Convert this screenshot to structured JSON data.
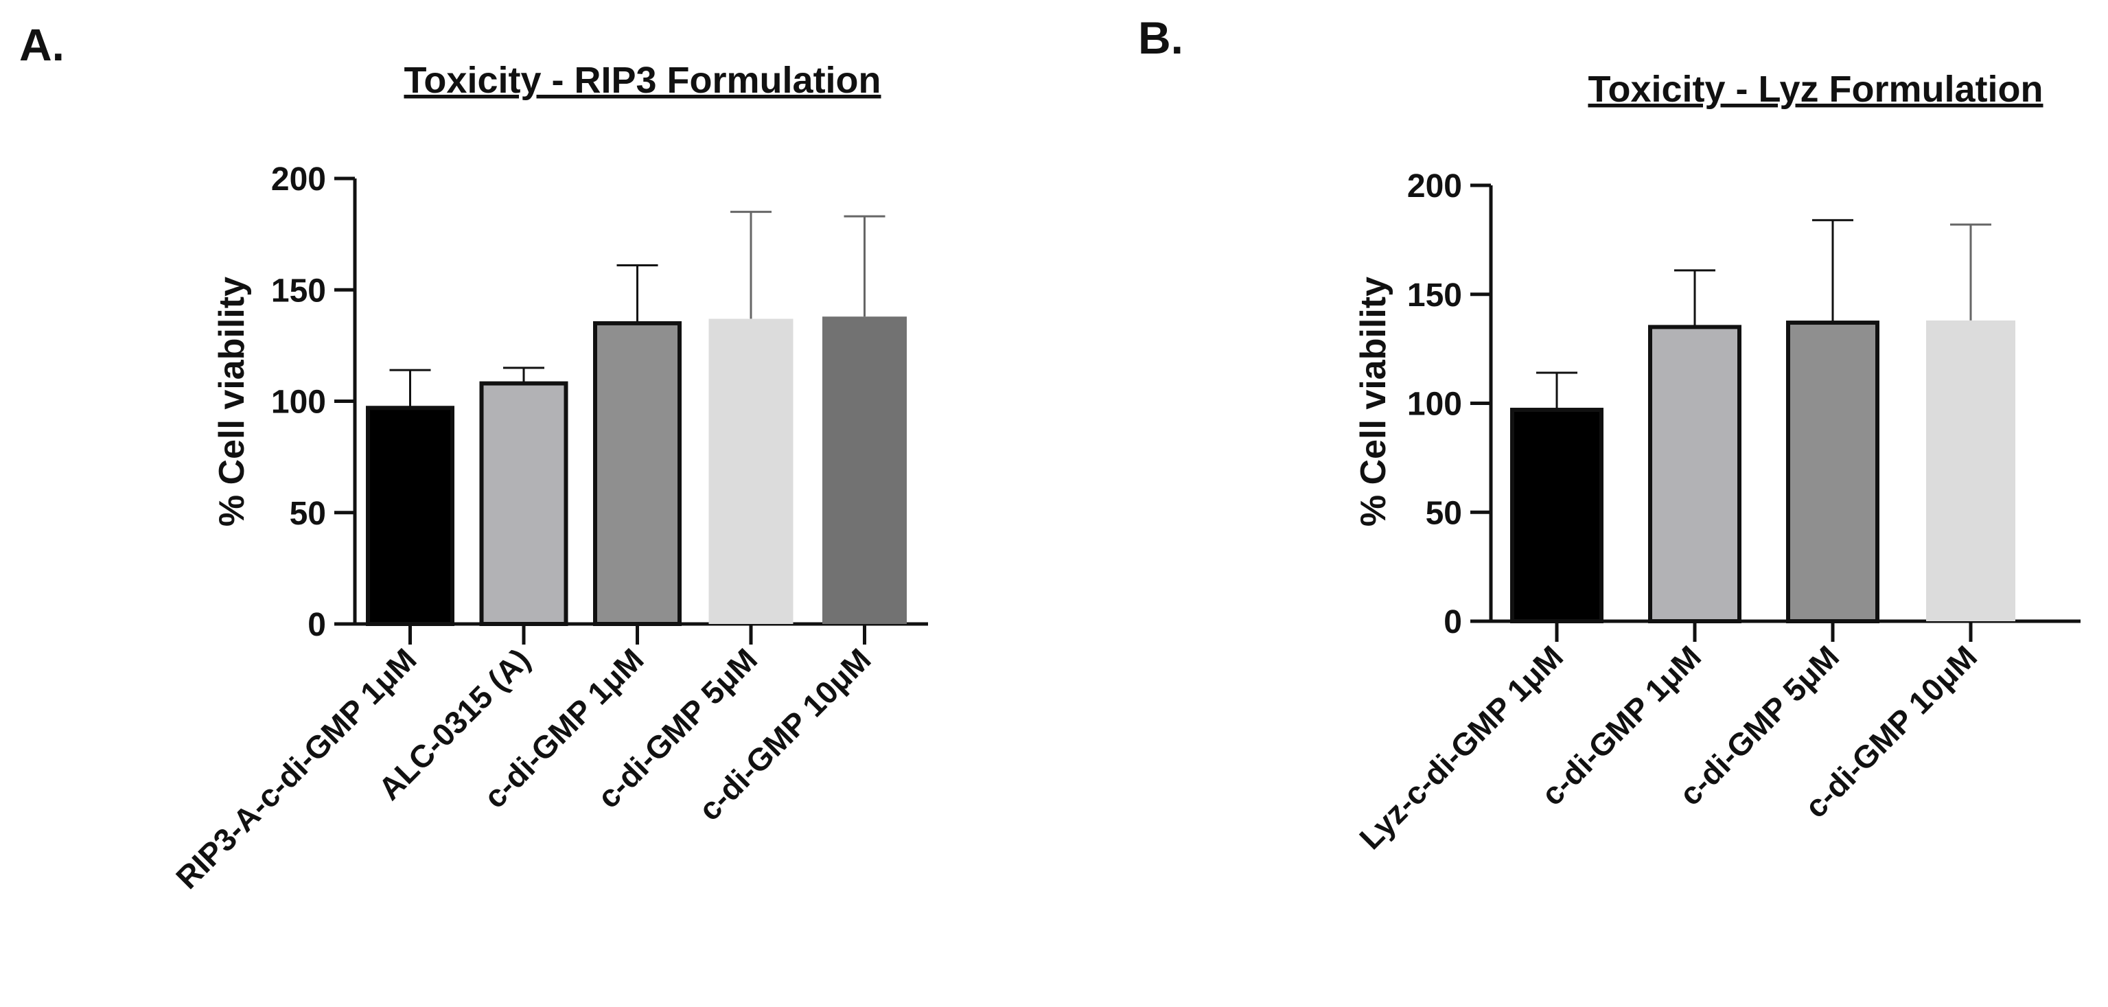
{
  "figure": {
    "panels": [
      {
        "panel_label": "A.",
        "title": "Toxicity - RIP3 Formulation"
      },
      {
        "panel_label": "B.",
        "title": "Toxicity - Lyz Formulation"
      }
    ]
  },
  "chart_data": [
    {
      "type": "bar",
      "panel_label": "A.",
      "title": "Toxicity - RIP3 Formulation",
      "xlabel": "",
      "ylabel": "% Cell viability",
      "ylim": [
        0,
        200
      ],
      "yticks": [
        0,
        50,
        100,
        150,
        200
      ],
      "categories": [
        "RIP3-A-c-di-GMP 1μM",
        "ALC-0315 (A)",
        "c-di-GMP 1μM",
        "c-di-GMP 5μM",
        "c-di-GMP 10μM"
      ],
      "values": [
        97,
        108,
        135,
        137,
        138
      ],
      "error_upper": [
        114,
        115,
        161,
        185,
        183
      ],
      "bar_colors": [
        "#000000",
        "#b2b2b5",
        "#8f8f8f",
        "#dcdcdc",
        "#727272"
      ],
      "bar_outline": [
        true,
        true,
        true,
        false,
        false
      ]
    },
    {
      "type": "bar",
      "panel_label": "B.",
      "title": "Toxicity - Lyz Formulation",
      "xlabel": "",
      "ylabel": "% Cell viability",
      "ylim": [
        0,
        200
      ],
      "yticks": [
        0,
        50,
        100,
        150,
        200
      ],
      "categories": [
        "Lyz-c-di-GMP 1μM",
        "c-di-GMP 1μM",
        "c-di-GMP 5μM",
        "c-di-GMP 10μM"
      ],
      "values": [
        97,
        135,
        137,
        138
      ],
      "error_upper": [
        114,
        161,
        184,
        182
      ],
      "bar_colors": [
        "#000000",
        "#b2b2b5",
        "#8f8f8f",
        "#dcdcdc"
      ],
      "bar_outline": [
        true,
        true,
        true,
        false
      ]
    }
  ]
}
